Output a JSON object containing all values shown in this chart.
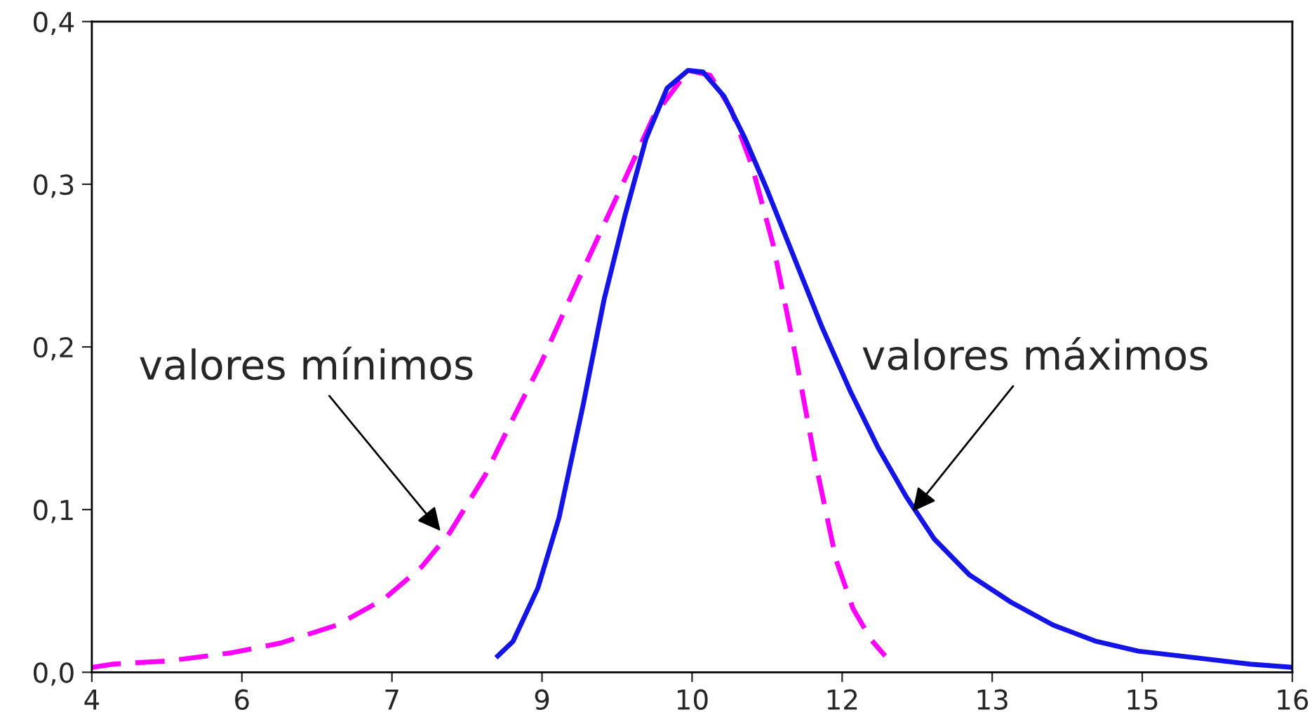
{
  "chart_data": {
    "type": "line",
    "xlim": [
      4,
      16
    ],
    "xticks": [
      4,
      {
        "value": 5.5,
        "label": "6"
      },
      7,
      {
        "value": 8.5,
        "label": "9"
      },
      10,
      {
        "value": 11.5,
        "label": "12"
      },
      13,
      {
        "value": 14.5,
        "label": "15"
      },
      16
    ],
    "ylim": [
      0,
      0.4
    ],
    "yticks": [
      {
        "value": 0,
        "label": "0,0"
      },
      {
        "value": 0.1,
        "label": "0,1"
      },
      {
        "value": 0.2,
        "label": "0,2"
      },
      {
        "value": 0.3,
        "label": "0,3"
      },
      {
        "value": 0.4,
        "label": "0,4"
      }
    ],
    "grid": false,
    "legend": false,
    "marker": "none",
    "series": [
      {
        "color": "#ff00ff",
        "line_style": "dashed",
        "x": [
          4.0,
          4.21,
          4.77,
          5.4,
          5.89,
          6.45,
          6.92,
          7.3,
          7.58,
          7.93,
          8.21,
          8.49,
          8.84,
          9.26,
          9.61,
          9.96,
          10.18,
          10.39,
          10.6,
          10.81,
          11.02,
          11.23,
          11.44,
          11.61,
          11.79,
          11.93
        ],
        "values": [
          0.003,
          0.005,
          0.007,
          0.012,
          0.018,
          0.029,
          0.045,
          0.065,
          0.086,
          0.121,
          0.156,
          0.19,
          0.238,
          0.294,
          0.341,
          0.37,
          0.367,
          0.346,
          0.311,
          0.263,
          0.199,
          0.13,
          0.069,
          0.039,
          0.02,
          0.01
        ]
      },
      {
        "color": "#1414e6",
        "line_style": "solid",
        "x": [
          8.04,
          8.21,
          8.46,
          8.67,
          8.91,
          9.12,
          9.33,
          9.54,
          9.75,
          9.96,
          10.11,
          10.32,
          10.53,
          10.74,
          11.02,
          11.3,
          11.58,
          11.86,
          12.14,
          12.42,
          12.77,
          13.19,
          13.61,
          14.04,
          14.46,
          15.02,
          15.58,
          16.0
        ],
        "values": [
          0.009,
          0.019,
          0.052,
          0.095,
          0.164,
          0.229,
          0.281,
          0.328,
          0.359,
          0.37,
          0.369,
          0.354,
          0.328,
          0.298,
          0.255,
          0.212,
          0.173,
          0.138,
          0.108,
          0.082,
          0.06,
          0.043,
          0.029,
          0.019,
          0.013,
          0.009,
          0.005,
          0.003
        ]
      }
    ],
    "annotations": [
      {
        "text": "valores mínimos",
        "x": 7.51,
        "y": 0.085
      },
      {
        "text": "valores máximos",
        "x": 12.18,
        "y": 0.097
      }
    ]
  }
}
